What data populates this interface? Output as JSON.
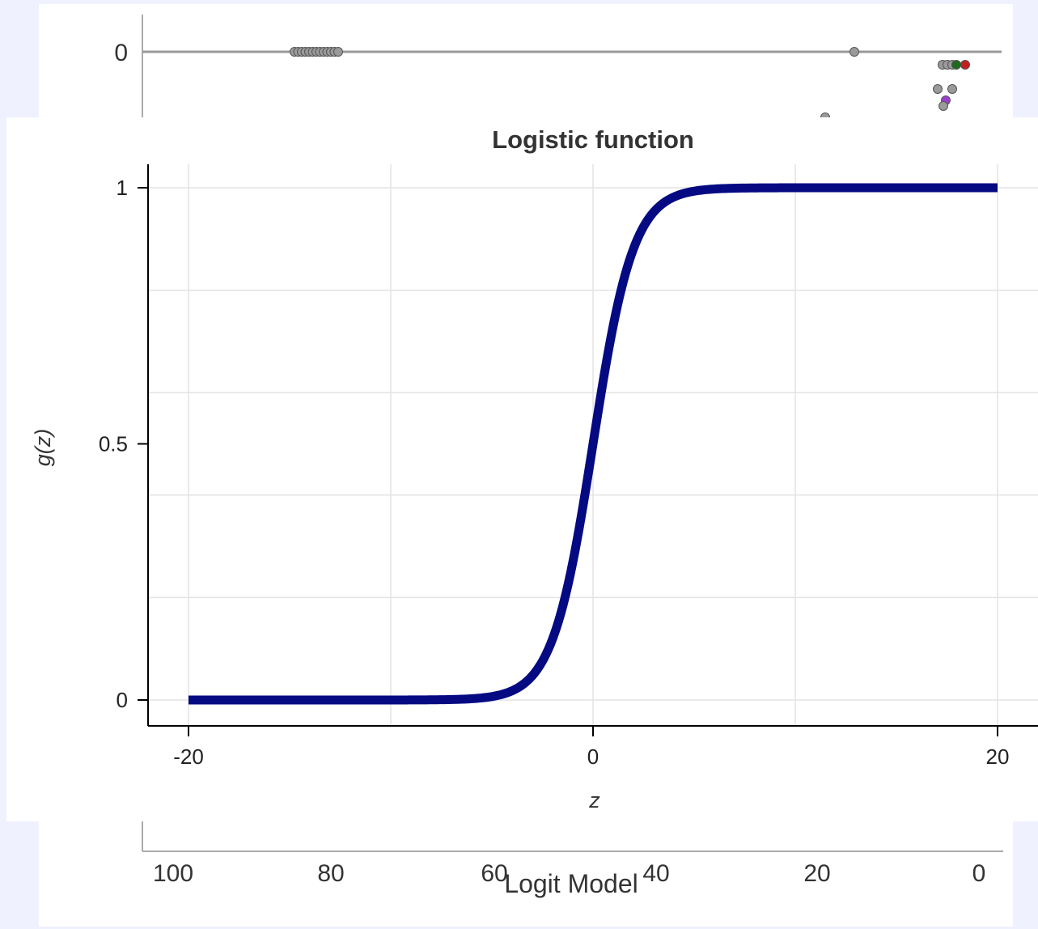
{
  "background_chart": {
    "type": "scatter",
    "y_ticks": [
      "0"
    ],
    "x_ticks": [
      "100",
      "80",
      "60",
      "40",
      "20",
      "0"
    ],
    "xlabel": "Logit Model",
    "highlight_colors": {
      "green": "#1e6b1e",
      "red": "#c42020",
      "purple": "#9b3fd0",
      "gray": "#9a9a9a"
    }
  },
  "chart_data": {
    "type": "line",
    "title": "Logistic function",
    "xlabel": "z",
    "ylabel": "g(z)",
    "xlim": [
      -20,
      20
    ],
    "ylim": [
      0,
      1
    ],
    "x_ticks": [
      "-20",
      "0",
      "20"
    ],
    "y_ticks": [
      "0",
      "0.5",
      "1"
    ],
    "grid": true,
    "series": [
      {
        "function": "1 / (1 + exp(-z))",
        "x": [
          -20,
          -15,
          -10,
          -8,
          -6,
          -5,
          -4,
          -3,
          -2,
          -1,
          0,
          1,
          2,
          3,
          4,
          5,
          6,
          8,
          10,
          15,
          20
        ],
        "values": [
          0.0,
          0.0,
          5e-05,
          0.0003,
          0.0025,
          0.0067,
          0.018,
          0.047,
          0.119,
          0.269,
          0.5,
          0.731,
          0.881,
          0.953,
          0.982,
          0.993,
          0.9975,
          0.9997,
          0.99995,
          1.0,
          1.0
        ],
        "color": "#050a82"
      }
    ]
  }
}
